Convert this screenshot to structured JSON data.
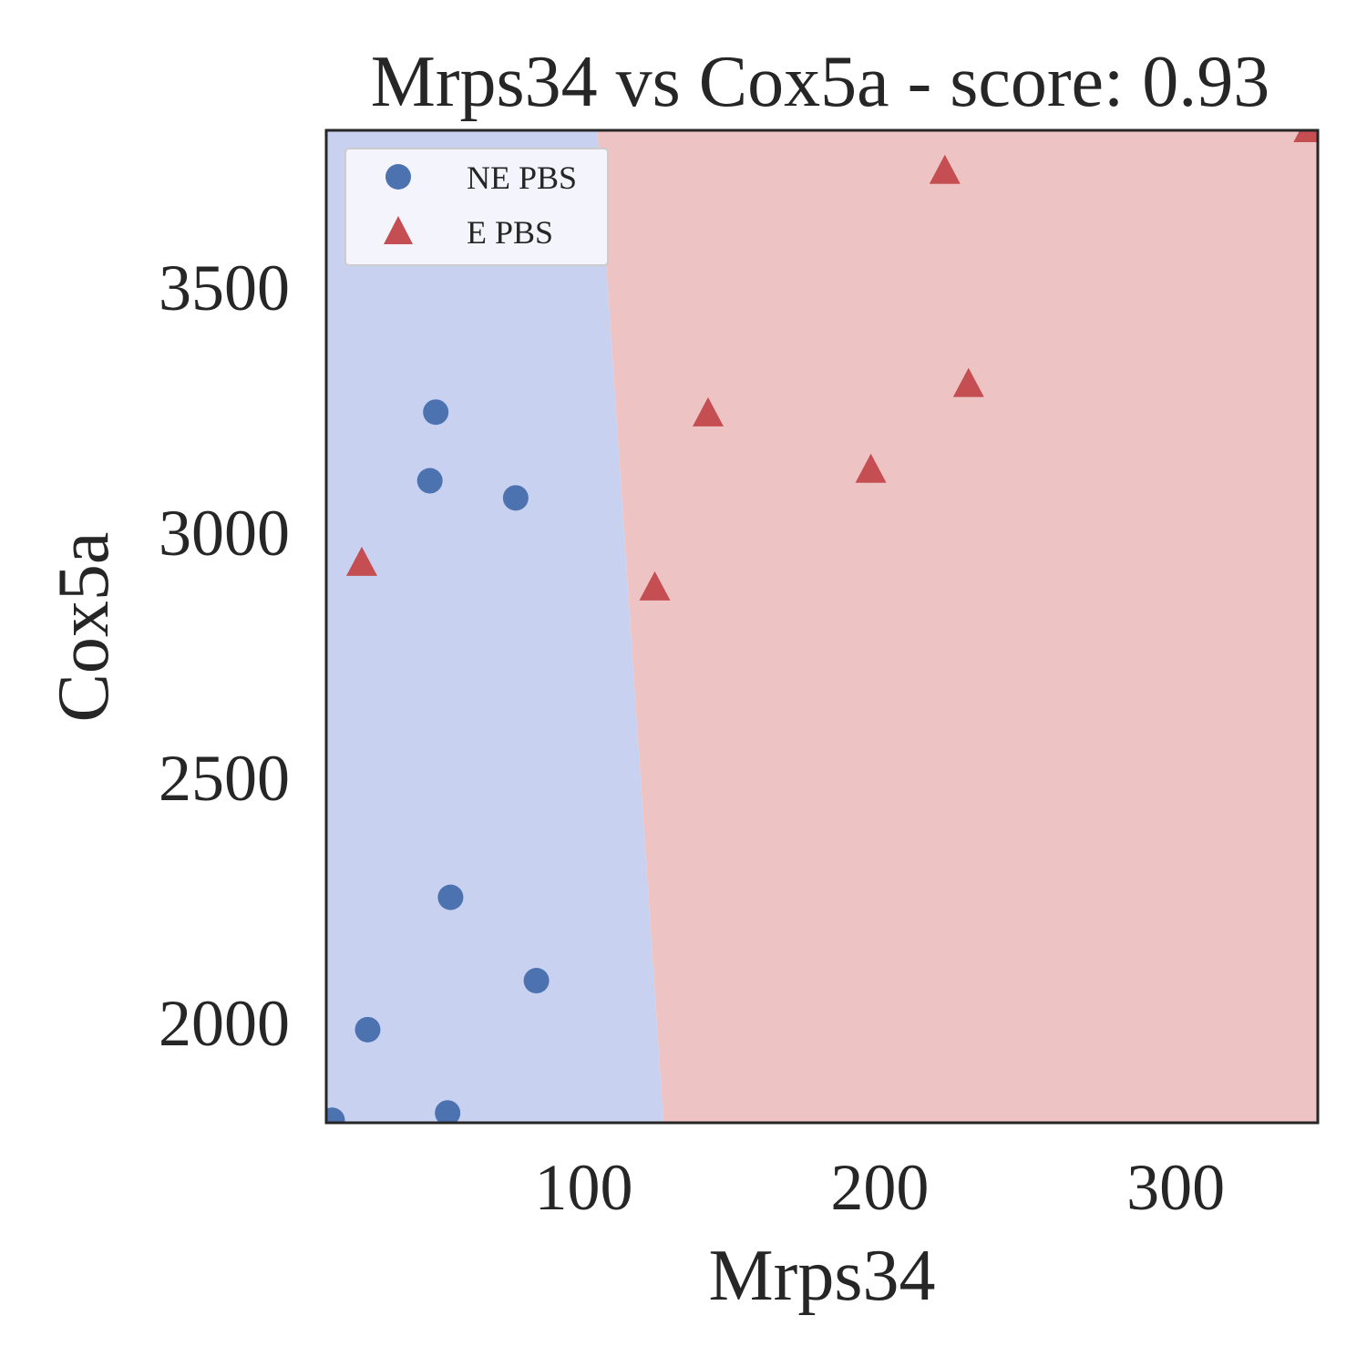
{
  "chart_data": {
    "type": "scatter",
    "title": "Mrps34 vs Cox5a - score: 0.93",
    "xlabel": "Mrps34",
    "ylabel": "Cox5a",
    "xlim": [
      13,
      348
    ],
    "ylim": [
      1795,
      3820
    ],
    "xticks": [
      100,
      200,
      300
    ],
    "yticks": [
      2000,
      2500,
      3000,
      3500
    ],
    "grid": false,
    "legend_position": "top-left",
    "decision_boundary": {
      "points": [
        [
          104.6,
          3820
        ],
        [
          127,
          1795
        ]
      ],
      "left_region_color": "#c9d1f1",
      "right_region_color": "#edc4c3"
    },
    "series": [
      {
        "name": "NE PBS",
        "marker": "circle",
        "color": "#4c72b0",
        "points": [
          [
            15,
            1800
          ],
          [
            27,
            1985
          ],
          [
            48,
            3105
          ],
          [
            50,
            3245
          ],
          [
            55,
            2255
          ],
          [
            54,
            1815
          ],
          [
            77,
            3070
          ],
          [
            84,
            2085
          ]
        ]
      },
      {
        "name": "E PBS",
        "marker": "triangle",
        "color": "#c44e52",
        "points": [
          [
            25,
            2935
          ],
          [
            124,
            2885
          ],
          [
            142,
            3240
          ],
          [
            197,
            3125
          ],
          [
            222,
            3735
          ],
          [
            230,
            3300
          ],
          [
            345,
            3820
          ]
        ]
      }
    ]
  }
}
